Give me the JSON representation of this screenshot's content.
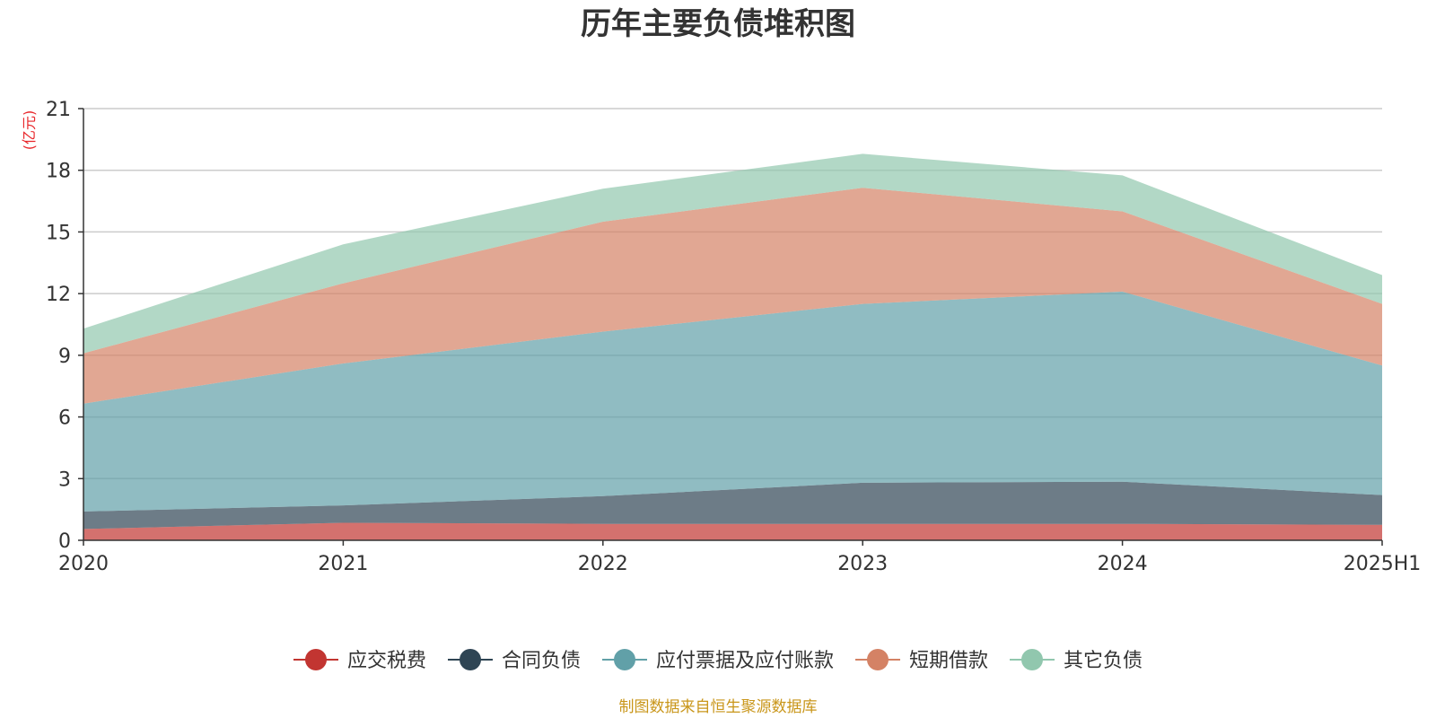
{
  "chart_data": {
    "type": "area",
    "stacked": true,
    "title": "历年主要负债堆积图",
    "ylabel": "(亿元)",
    "xlabel": "",
    "categories": [
      "2020",
      "2021",
      "2022",
      "2023",
      "2024",
      "2025H1"
    ],
    "ylim": [
      0,
      21
    ],
    "yticks": [
      0,
      3,
      6,
      9,
      12,
      15,
      18,
      21
    ],
    "grid": true,
    "legend_position": "bottom",
    "series": [
      {
        "name": "应交税费",
        "color": "#c23531",
        "values": [
          0.55,
          0.85,
          0.8,
          0.8,
          0.8,
          0.75
        ]
      },
      {
        "name": "合同负债",
        "color": "#2f4554",
        "values": [
          0.85,
          0.85,
          1.35,
          2.0,
          2.05,
          1.45
        ]
      },
      {
        "name": "应付票据及应付账款",
        "color": "#61a0a8",
        "values": [
          5.25,
          6.9,
          8.0,
          8.7,
          9.25,
          6.3
        ]
      },
      {
        "name": "短期借款",
        "color": "#d48265",
        "values": [
          2.45,
          3.9,
          5.35,
          5.65,
          3.9,
          3.0
        ]
      },
      {
        "name": "其它负债",
        "color": "#91c7ae",
        "values": [
          1.2,
          1.9,
          1.6,
          1.65,
          1.75,
          1.4
        ]
      }
    ],
    "source": "制图数据来自恒生聚源数据库"
  }
}
